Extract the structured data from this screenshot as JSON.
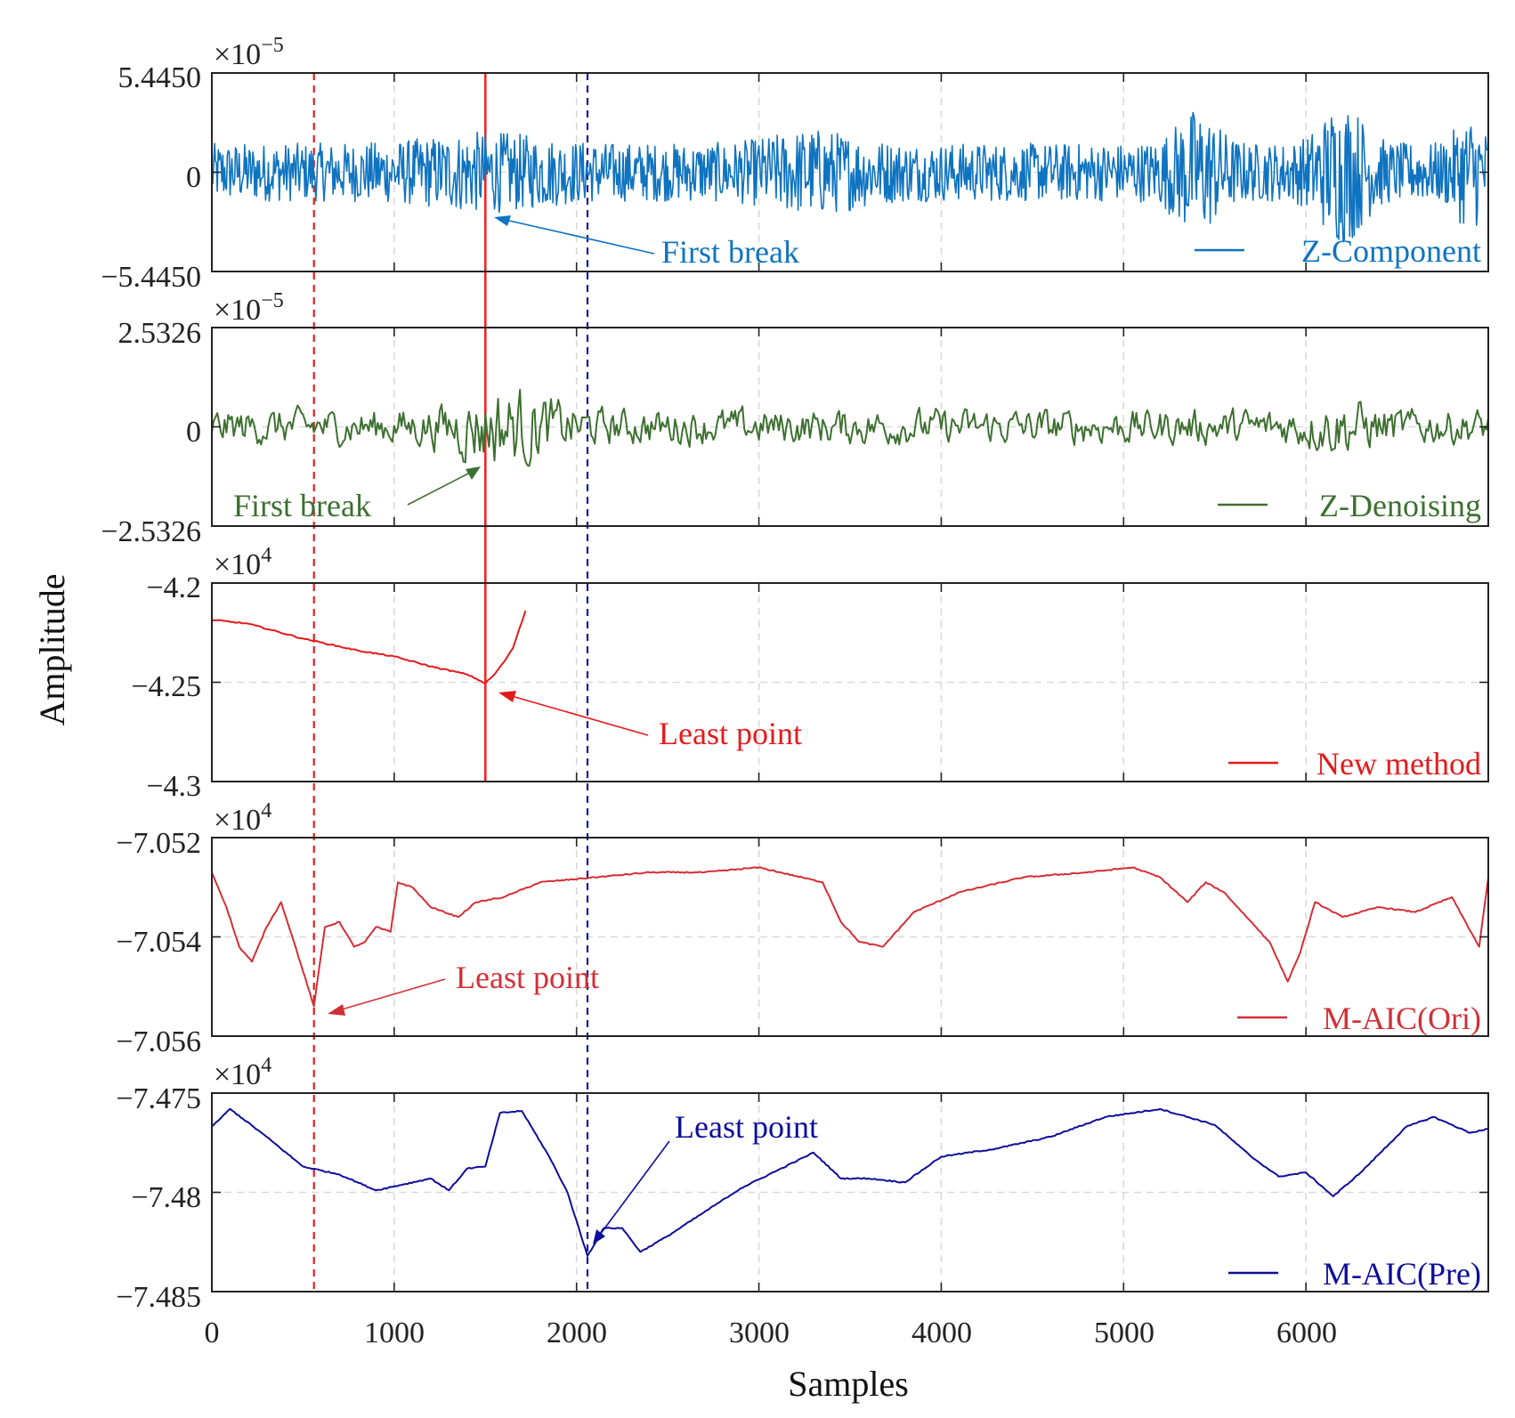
{
  "chart_data": {
    "type": "line",
    "title": "",
    "xlabel": "Samples",
    "ylabel": "Amplitude",
    "xlim": [
      0,
      7000
    ],
    "xticks": [
      0,
      1000,
      2000,
      3000,
      4000,
      5000,
      6000
    ],
    "xtick_labels": [
      "0",
      "1000",
      "2000",
      "3000",
      "4000",
      "5000",
      "6000"
    ],
    "grid": true,
    "vertical_markers": [
      {
        "x": 560,
        "color": "#e02020",
        "style": "dashed",
        "spans": "all"
      },
      {
        "x": 2060,
        "color": "#1a1aa8",
        "style": "dashed",
        "spans": "all"
      },
      {
        "x": 1500,
        "color": "#ff1a1a",
        "style": "solid",
        "spans": "panels 1-3"
      }
    ],
    "panels": [
      {
        "series": "Z-Component",
        "color": "#0e73c0",
        "legend": "Z-Component",
        "legend_position": "bottom-right",
        "exponent": {
          "base": "×10",
          "power": "−5"
        },
        "ylim": [
          -5.445,
          5.445
        ],
        "ytick_labels": [
          "5.4450",
          "0",
          "−5.4450"
        ],
        "signal": {
          "kind": "noise",
          "amplitude": 1.6,
          "bursts": [
            [
              1500,
              400,
              1.4
            ],
            [
              3300,
              300,
              1.5
            ],
            [
              5400,
              150,
              2.2
            ],
            [
              6200,
              150,
              2.5
            ],
            [
              6900,
              100,
              2.0
            ]
          ]
        },
        "annotation": {
          "text": "First break",
          "color": "#0e73c0",
          "arrow_to": [
            1560,
            -2.4
          ]
        }
      },
      {
        "series": "Z-Denoising",
        "color": "#3d7030",
        "legend": "Z-Denoising",
        "legend_position": "bottom-right",
        "exponent": {
          "base": "×10",
          "power": "−5"
        },
        "ylim": [
          -2.5326,
          2.5326
        ],
        "ytick_labels": [
          "2.5326",
          "0",
          "−2.5326"
        ],
        "signal": {
          "kind": "smooth-noise",
          "amplitude": 0.42,
          "bursts": [
            [
              1600,
              300,
              2.4
            ],
            [
              6200,
              200,
              1.6
            ]
          ]
        },
        "annotation": {
          "text": "First break",
          "color": "#3d7030",
          "arrow_to": [
            1480,
            -0.95
          ]
        }
      },
      {
        "series": "New method",
        "color": "#e31a1c",
        "legend": "New method",
        "legend_position": "bottom-right",
        "exponent": {
          "base": "×10",
          "power": "4"
        },
        "ylim": [
          -4.3,
          -4.2
        ],
        "ytick_labels": [
          "−4.2",
          "−4.25",
          "−4.3"
        ],
        "points": [
          [
            0,
            -4.2185
          ],
          [
            200,
            -4.2205
          ],
          [
            500,
            -4.228
          ],
          [
            800,
            -4.234
          ],
          [
            1000,
            -4.237
          ],
          [
            1200,
            -4.242
          ],
          [
            1400,
            -4.246
          ],
          [
            1500,
            -4.2505
          ],
          [
            1550,
            -4.246
          ],
          [
            1600,
            -4.24
          ],
          [
            1650,
            -4.233
          ],
          [
            1720,
            -4.214
          ]
        ],
        "annotation": {
          "text": "Least point",
          "color": "#e31a1c",
          "arrow_to": [
            1510,
            -4.2515
          ]
        }
      },
      {
        "series": "M-AIC(Ori)",
        "color": "#d32f36",
        "legend": "M-AIC(Ori)",
        "legend_position": "bottom-right",
        "exponent": {
          "base": "×10",
          "power": "4"
        },
        "ylim": [
          -7.056,
          -7.052
        ],
        "ytick_labels": [
          "−7.052",
          "−7.054",
          "−7.056"
        ],
        "points": [
          [
            0,
            -7.0527
          ],
          [
            80,
            -7.0534
          ],
          [
            150,
            -7.0542
          ],
          [
            220,
            -7.0545
          ],
          [
            300,
            -7.0538
          ],
          [
            380,
            -7.0533
          ],
          [
            450,
            -7.0541
          ],
          [
            560,
            -7.0554
          ],
          [
            620,
            -7.0538
          ],
          [
            700,
            -7.0537
          ],
          [
            780,
            -7.0542
          ],
          [
            840,
            -7.0541
          ],
          [
            900,
            -7.0538
          ],
          [
            980,
            -7.0539
          ],
          [
            1020,
            -7.0529
          ],
          [
            1100,
            -7.053
          ],
          [
            1200,
            -7.0534
          ],
          [
            1350,
            -7.0536
          ],
          [
            1450,
            -7.0533
          ],
          [
            1600,
            -7.0532
          ],
          [
            1800,
            -7.0529
          ],
          [
            2100,
            -7.0528
          ],
          [
            2400,
            -7.0527
          ],
          [
            2700,
            -7.0527
          ],
          [
            3000,
            -7.0526
          ],
          [
            3350,
            -7.0529
          ],
          [
            3450,
            -7.0537
          ],
          [
            3550,
            -7.0541
          ],
          [
            3680,
            -7.0542
          ],
          [
            3850,
            -7.0535
          ],
          [
            4100,
            -7.0531
          ],
          [
            4450,
            -7.0528
          ],
          [
            4800,
            -7.0527
          ],
          [
            5050,
            -7.0526
          ],
          [
            5200,
            -7.0528
          ],
          [
            5350,
            -7.0533
          ],
          [
            5450,
            -7.0529
          ],
          [
            5550,
            -7.0531
          ],
          [
            5800,
            -7.0541
          ],
          [
            5900,
            -7.0549
          ],
          [
            5970,
            -7.0543
          ],
          [
            6050,
            -7.0533
          ],
          [
            6200,
            -7.0536
          ],
          [
            6400,
            -7.0534
          ],
          [
            6600,
            -7.0535
          ],
          [
            6800,
            -7.0532
          ],
          [
            6950,
            -7.0542
          ],
          [
            7000,
            -7.0528
          ]
        ],
        "annotation": {
          "text": "Least point",
          "color": "#d32f36",
          "arrow_to": [
            600,
            -7.0553
          ]
        }
      },
      {
        "series": "M-AIC(Pre)",
        "color": "#0d0d9a",
        "legend": "M-AIC(Pre)",
        "legend_position": "bottom-right",
        "exponent": {
          "base": "×10",
          "power": "4"
        },
        "ylim": [
          -7.485,
          -7.475
        ],
        "ytick_labels": [
          "−7.475",
          "−7.48",
          "−7.485"
        ],
        "points": [
          [
            0,
            -7.4767
          ],
          [
            100,
            -7.4758
          ],
          [
            300,
            -7.4772
          ],
          [
            500,
            -7.4787
          ],
          [
            700,
            -7.4791
          ],
          [
            900,
            -7.4799
          ],
          [
            1050,
            -7.4796
          ],
          [
            1200,
            -7.4793
          ],
          [
            1300,
            -7.4799
          ],
          [
            1400,
            -7.4788
          ],
          [
            1500,
            -7.4787
          ],
          [
            1580,
            -7.476
          ],
          [
            1700,
            -7.4759
          ],
          [
            1850,
            -7.4782
          ],
          [
            1950,
            -7.48
          ],
          [
            2060,
            -7.4832
          ],
          [
            2150,
            -7.4818
          ],
          [
            2250,
            -7.4818
          ],
          [
            2350,
            -7.483
          ],
          [
            2500,
            -7.4822
          ],
          [
            2700,
            -7.481
          ],
          [
            2900,
            -7.4798
          ],
          [
            3100,
            -7.4789
          ],
          [
            3300,
            -7.478
          ],
          [
            3450,
            -7.4793
          ],
          [
            3600,
            -7.4793
          ],
          [
            3800,
            -7.4795
          ],
          [
            4000,
            -7.4782
          ],
          [
            4300,
            -7.4778
          ],
          [
            4600,
            -7.4772
          ],
          [
            4900,
            -7.4762
          ],
          [
            5200,
            -7.4758
          ],
          [
            5500,
            -7.4766
          ],
          [
            5700,
            -7.4782
          ],
          [
            5850,
            -7.4792
          ],
          [
            6000,
            -7.479
          ],
          [
            6150,
            -7.4802
          ],
          [
            6300,
            -7.479
          ],
          [
            6550,
            -7.4767
          ],
          [
            6700,
            -7.4762
          ],
          [
            6900,
            -7.477
          ],
          [
            7000,
            -7.4768
          ]
        ],
        "annotation": {
          "text": "Least point",
          "color": "#0d0d9a",
          "arrow_to": [
            2080,
            -7.4823
          ]
        }
      }
    ]
  }
}
